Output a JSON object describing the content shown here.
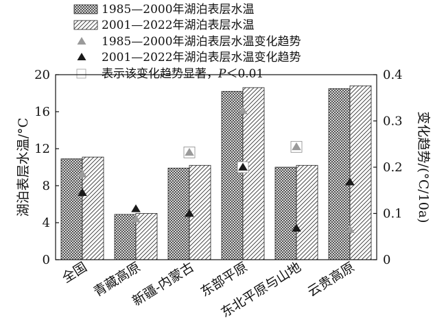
{
  "chart_data": {
    "type": "bar",
    "categories": [
      "全国",
      "青藏高原",
      "新疆-内蒙古",
      "东部平原",
      "东北平原与山地",
      "云贵高原"
    ],
    "left_axis": {
      "label": "湖泊表层水温/°C",
      "ylim": [
        0,
        20
      ],
      "ticks": [
        0,
        4,
        8,
        12,
        16,
        20
      ]
    },
    "right_axis": {
      "label": "变化趋势/(°C/10a)",
      "ylim": [
        0,
        0.4
      ],
      "ticks": [
        "0",
        "0.1",
        "0.2",
        "0.3",
        "0.4"
      ]
    },
    "series": [
      {
        "name": "1985—2000年湖泊表层水温",
        "kind": "bar",
        "axis": "left",
        "pattern": "crosshatch",
        "values": [
          10.9,
          4.9,
          9.9,
          18.2,
          10.0,
          18.5
        ]
      },
      {
        "name": "2001—2022年湖泊表层水温",
        "kind": "bar",
        "axis": "left",
        "pattern": "diagonal",
        "values": [
          11.1,
          5.0,
          10.2,
          18.6,
          10.2,
          18.8
        ]
      },
      {
        "name": "1985—2000年湖泊表层水温变化趋势",
        "kind": "marker",
        "axis": "right",
        "color": "#9a9a9a",
        "values": [
          0.185,
          0.088,
          0.232,
          0.322,
          0.244,
          0.065
        ],
        "significant": [
          false,
          false,
          true,
          false,
          true,
          false
        ]
      },
      {
        "name": "2001—2022年湖泊表层水温变化趋势",
        "kind": "marker",
        "axis": "right",
        "color": "#1a1a1a",
        "values": [
          0.145,
          0.11,
          0.1,
          0.2,
          0.068,
          0.168
        ],
        "significant": [
          false,
          false,
          false,
          true,
          false,
          false
        ]
      }
    ],
    "legend": {
      "placement": "top-left",
      "significance_label": "表示该变化趋势显著，",
      "significance_p": "P",
      "significance_value": "＜0.01"
    }
  }
}
